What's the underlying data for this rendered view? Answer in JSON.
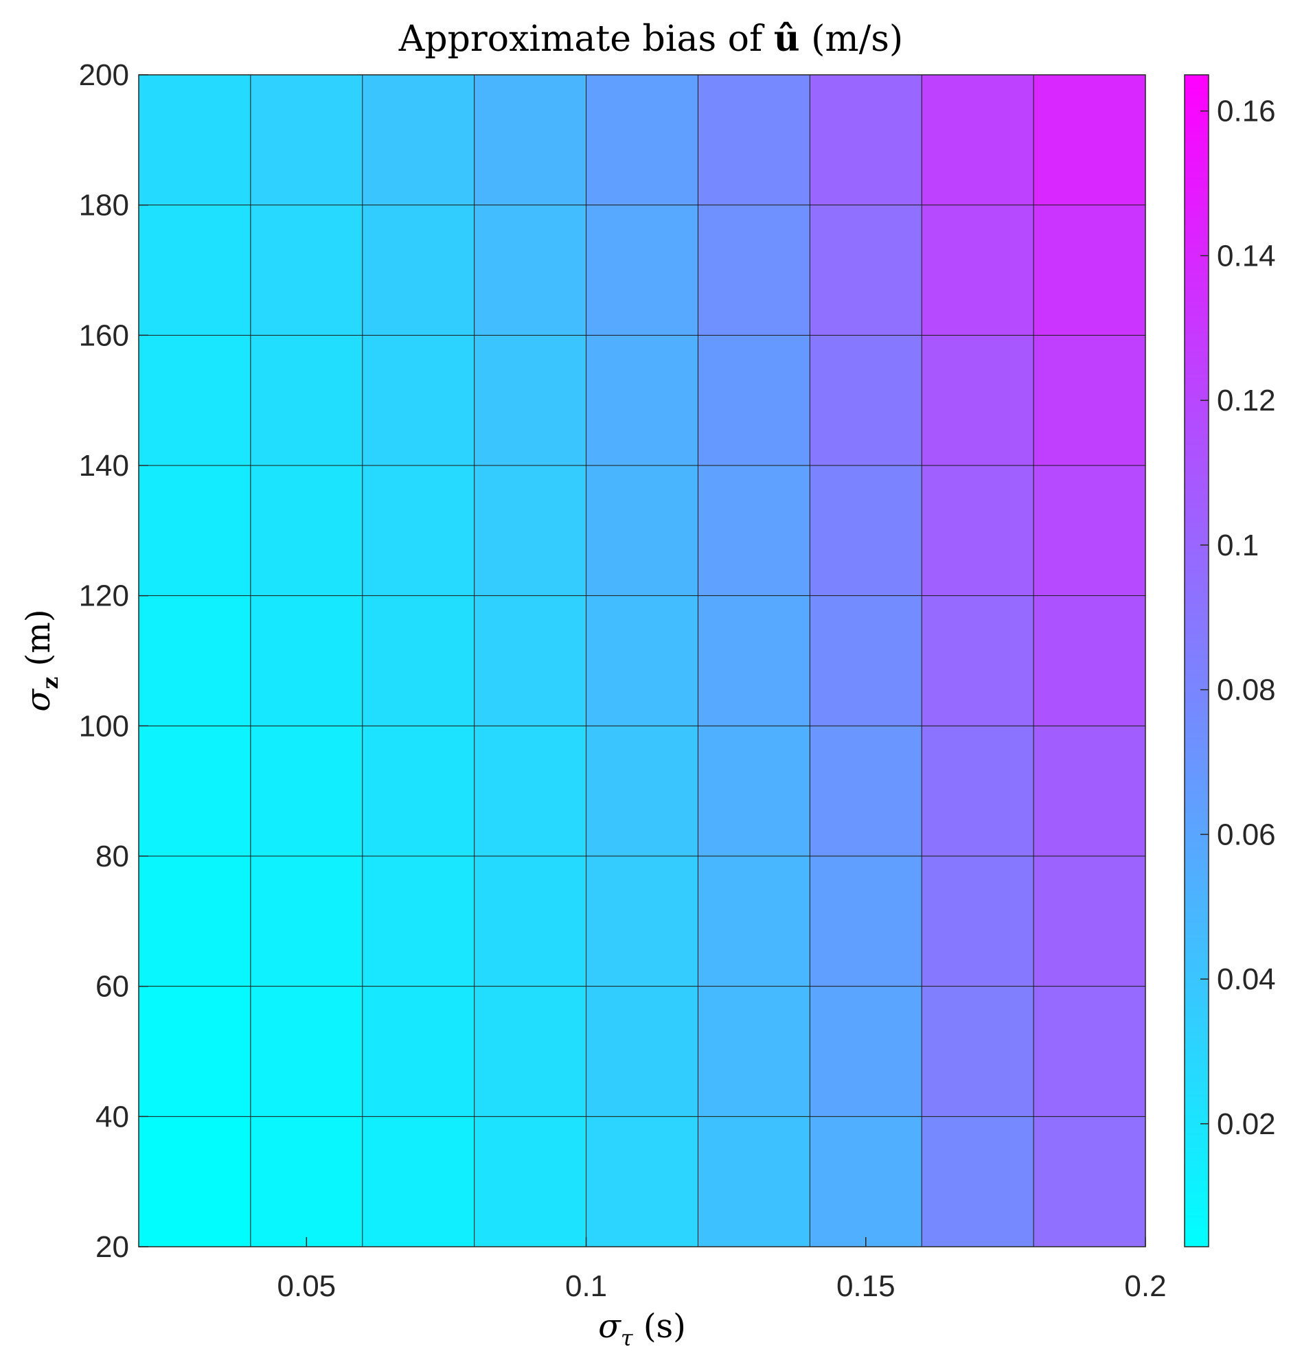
{
  "chart_data": {
    "type": "heatmap",
    "title": {
      "pre": "Approximate bias of ",
      "sym": "û",
      "post": " (m/s)"
    },
    "xlabel": {
      "sym": "σ",
      "sub": "τ",
      "unit": " (s)"
    },
    "ylabel": {
      "sym": "σ",
      "sub": "z",
      "unit": " (m)"
    },
    "xlim": [
      0.02,
      0.2
    ],
    "ylim": [
      20,
      200
    ],
    "x_edges": [
      0.02,
      0.04,
      0.06,
      0.08,
      0.1,
      0.12,
      0.14,
      0.16,
      0.18,
      0.2
    ],
    "y_edges": [
      20,
      40,
      60,
      80,
      100,
      120,
      140,
      160,
      180,
      200
    ],
    "x_ticks": [
      0.05,
      0.1,
      0.15,
      0.2
    ],
    "x_tick_labels": [
      "0.05",
      "0.1",
      "0.15",
      "0.2"
    ],
    "y_ticks": [
      20,
      40,
      60,
      80,
      100,
      120,
      140,
      160,
      180,
      200
    ],
    "y_tick_labels": [
      "20",
      "40",
      "60",
      "80",
      "100",
      "120",
      "140",
      "160",
      "180",
      "200"
    ],
    "values": [
      [
        0.004,
        0.008,
        0.013,
        0.021,
        0.03,
        0.042,
        0.054,
        0.078,
        0.094
      ],
      [
        0.006,
        0.01,
        0.017,
        0.024,
        0.035,
        0.047,
        0.06,
        0.084,
        0.098
      ],
      [
        0.008,
        0.012,
        0.019,
        0.026,
        0.036,
        0.049,
        0.064,
        0.088,
        0.102
      ],
      [
        0.01,
        0.014,
        0.021,
        0.028,
        0.04,
        0.053,
        0.07,
        0.092,
        0.106
      ],
      [
        0.012,
        0.017,
        0.024,
        0.032,
        0.045,
        0.058,
        0.076,
        0.098,
        0.112
      ],
      [
        0.015,
        0.02,
        0.027,
        0.036,
        0.05,
        0.063,
        0.082,
        0.104,
        0.118
      ],
      [
        0.018,
        0.024,
        0.031,
        0.04,
        0.054,
        0.068,
        0.088,
        0.11,
        0.125
      ],
      [
        0.022,
        0.028,
        0.035,
        0.045,
        0.058,
        0.073,
        0.094,
        0.118,
        0.132
      ],
      [
        0.026,
        0.032,
        0.04,
        0.05,
        0.064,
        0.078,
        0.1,
        0.124,
        0.14
      ]
    ],
    "colorbar": {
      "range": [
        0.003,
        0.165
      ],
      "ticks": [
        0.02,
        0.04,
        0.06,
        0.08,
        0.1,
        0.12,
        0.14,
        0.16
      ],
      "tick_labels": [
        "0.02",
        "0.04",
        "0.06",
        "0.08",
        "0.1",
        "0.12",
        "0.14",
        "0.16"
      ],
      "colormap": "cool",
      "color_low": "#00FFFF",
      "color_high": "#FF00FF"
    },
    "grid": true
  }
}
